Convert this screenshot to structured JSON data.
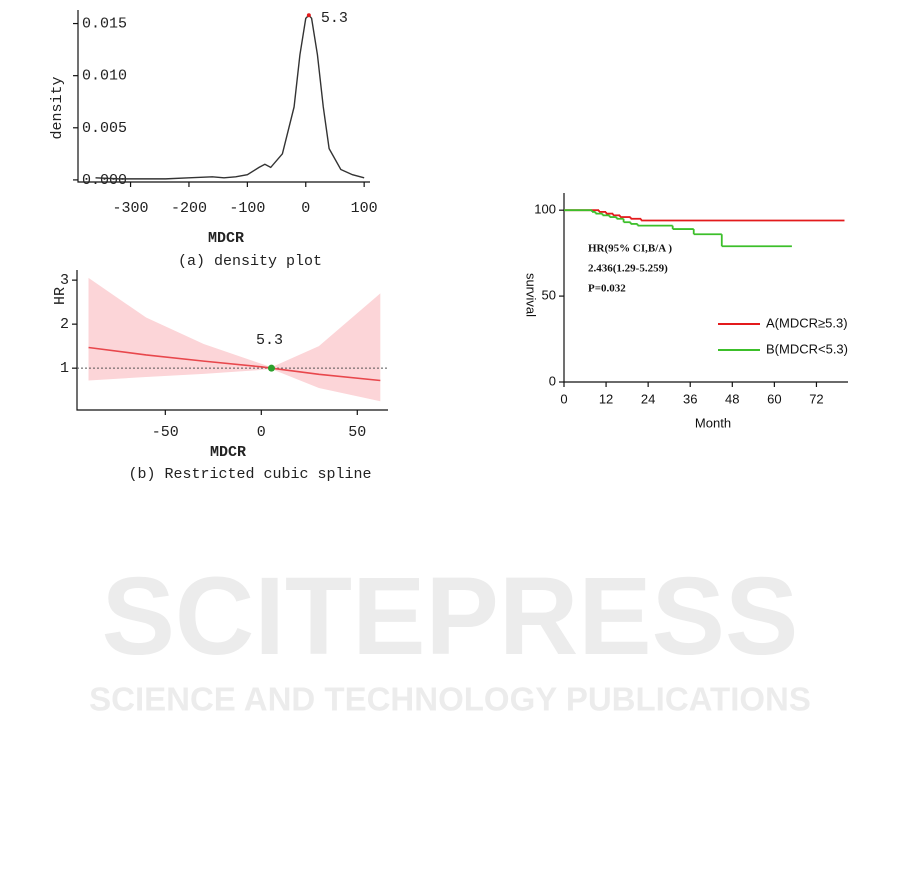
{
  "chart_data": [
    {
      "type": "line",
      "x_label": "MDCR",
      "y_label": "density",
      "caption": "(a) density plot",
      "x": [
        -360,
        -320,
        -280,
        -240,
        -200,
        -160,
        -140,
        -120,
        -100,
        -80,
        -70,
        -60,
        -40,
        -20,
        -10,
        0,
        5.3,
        10,
        20,
        30,
        40,
        60,
        80,
        100
      ],
      "values": [
        0.0002,
        0.0001,
        0.0001,
        0.0001,
        0.0002,
        0.0003,
        0.0002,
        0.0003,
        0.0005,
        0.0012,
        0.0015,
        0.0012,
        0.0025,
        0.007,
        0.012,
        0.0155,
        0.0158,
        0.0155,
        0.012,
        0.007,
        0.003,
        0.001,
        0.0005,
        0.0002
      ],
      "color": "#333333",
      "xlim": [
        -390,
        110
      ],
      "ylim": [
        -0.0002,
        0.0163
      ],
      "xticks": [
        -300,
        -200,
        -100,
        0,
        100
      ],
      "yticks": [
        {
          "value": 0,
          "label": "0.000"
        },
        0.005,
        {
          "value": 0.01,
          "label": "0.010"
        },
        0.015
      ],
      "annotations": [
        {
          "text": "5.3",
          "x": 5.3,
          "y": 0.0158,
          "color": "#e31a1c"
        }
      ]
    },
    {
      "type": "spline",
      "x_label": "MDCR",
      "y_label": "HR",
      "caption": "(b) Restricted cubic spline",
      "x": [
        -90,
        -60,
        -30,
        0,
        5.3,
        30,
        62
      ],
      "values": [
        1.47,
        1.3,
        1.16,
        1.03,
        1,
        0.86,
        0.72
      ],
      "lower": [
        0.72,
        0.8,
        0.87,
        0.96,
        0.98,
        0.55,
        0.25
      ],
      "upper": [
        3.05,
        2.15,
        1.55,
        1.1,
        1.02,
        1.5,
        2.7
      ],
      "color": "#e8474c",
      "band_color": "#fcd5d8",
      "reference": 1,
      "xlim": [
        -96,
        66
      ],
      "ylim": [
        0.05,
        3.23
      ],
      "xticks": [
        -50,
        0,
        50
      ],
      "yticks": [
        1,
        2,
        3
      ],
      "annotations": [
        {
          "text": "5.3",
          "x": 5.3,
          "y": 1,
          "color": "#2ca02c"
        }
      ]
    },
    {
      "type": "step",
      "x_label": "Month",
      "y_label": "survival",
      "notes": [
        "HR(95% CI,B/A )",
        "2.436(1.29-5.259)",
        "P=0.032"
      ],
      "xlim": [
        0,
        81
      ],
      "ylim": [
        0,
        110
      ],
      "xticks": [
        0,
        12,
        24,
        36,
        48,
        60,
        72
      ],
      "yticks": [
        0,
        50,
        100
      ],
      "series": [
        {
          "name": "A(MDCR≥5.3)",
          "color": "#e31a1c",
          "x": [
            0,
            10,
            12,
            14,
            16,
            19,
            22,
            80
          ],
          "values": [
            100,
            99,
            98,
            97,
            96,
            95,
            94,
            94
          ]
        },
        {
          "name": "B(MDCR<5.3)",
          "color": "#3cbf2a",
          "x": [
            0,
            8,
            9,
            11,
            13,
            15,
            17,
            19,
            21,
            31,
            37,
            45,
            65
          ],
          "values": [
            100,
            99,
            98,
            97,
            96,
            95,
            93,
            92,
            91,
            89,
            86,
            79,
            79
          ]
        }
      ]
    }
  ],
  "watermark": {
    "title": "SCITEPRESS",
    "subtitle": "SCIENCE AND TECHNOLOGY PUBLICATIONS"
  }
}
